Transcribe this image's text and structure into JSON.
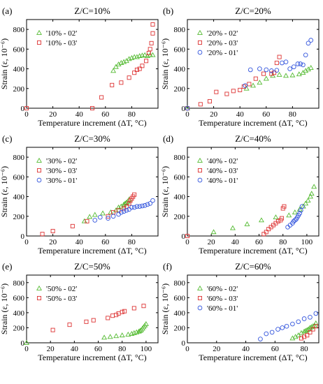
{
  "chart_data": [
    {
      "panel": "(a)",
      "type": "scatter",
      "title": "Z/C=10%",
      "xlabel": "Temperature increment (ΔT, °C)",
      "ylabel": "Strain (ε, 10⁻⁶)",
      "xlim": [
        0,
        100
      ],
      "ylim": [
        0,
        900
      ],
      "xticks": [
        "0",
        "20",
        "40",
        "60",
        "80"
      ],
      "yticks": [
        "0",
        "200",
        "400",
        "600",
        "800"
      ],
      "legend_position": "top-left",
      "series": [
        {
          "name": "'10% - 02'",
          "marker": "triangle",
          "color": "#55bb33",
          "x": [
            66,
            68,
            70,
            72,
            74,
            76,
            78,
            80,
            82,
            84,
            86,
            88,
            90,
            92,
            94,
            96
          ],
          "y": [
            380,
            420,
            445,
            460,
            470,
            480,
            500,
            510,
            520,
            520,
            530,
            535,
            540,
            530,
            540,
            540
          ]
        },
        {
          "name": "'10% - 03'",
          "marker": "square",
          "color": "#dd3333",
          "x": [
            0,
            50,
            57,
            65,
            72,
            78,
            82,
            84,
            86,
            88,
            91,
            93,
            94,
            95,
            96,
            96
          ],
          "y": [
            0,
            0,
            110,
            235,
            260,
            310,
            360,
            390,
            400,
            430,
            480,
            560,
            600,
            660,
            760,
            850
          ]
        }
      ]
    },
    {
      "panel": "(b)",
      "type": "scatter",
      "title": "Z/C=20%",
      "xlabel": "Temperature increment (ΔT, °C)",
      "ylabel": "Strain (ε, 10⁻⁶)",
      "xlim": [
        0,
        100
      ],
      "ylim": [
        0,
        900
      ],
      "xticks": [
        "0",
        "20",
        "40",
        "60",
        "80"
      ],
      "yticks": [
        "0",
        "200",
        "400",
        "600",
        "800"
      ],
      "legend_position": "top-left",
      "series": [
        {
          "name": "'20% - 02'",
          "marker": "triangle",
          "color": "#55bb33",
          "x": [
            0,
            45,
            50,
            55,
            60,
            65,
            70,
            75,
            80,
            85,
            88,
            90,
            92,
            94
          ],
          "y": [
            0,
            200,
            230,
            260,
            300,
            330,
            340,
            330,
            335,
            345,
            360,
            380,
            395,
            410
          ]
        },
        {
          "name": "'20% - 03'",
          "marker": "square",
          "color": "#dd3333",
          "x": [
            0,
            10,
            17,
            22,
            30,
            35,
            40,
            43,
            47,
            52,
            58,
            64,
            66,
            68,
            70
          ],
          "y": [
            0,
            40,
            70,
            165,
            145,
            175,
            185,
            220,
            245,
            300,
            350,
            350,
            360,
            460,
            520
          ]
        },
        {
          "name": "'20% - 01'",
          "marker": "circle",
          "color": "#3355dd",
          "x": [
            0,
            44,
            48,
            55,
            60,
            64,
            68,
            72,
            75,
            78,
            81,
            84,
            86,
            88,
            90,
            92,
            94
          ],
          "y": [
            0,
            230,
            390,
            400,
            390,
            380,
            385,
            460,
            470,
            400,
            420,
            450,
            450,
            440,
            540,
            660,
            690
          ]
        }
      ]
    },
    {
      "panel": "(c)",
      "type": "scatter",
      "title": "Z/C=30%",
      "xlabel": "Temperature increment (ΔT, °C)",
      "ylabel": "Strain (ε, 10⁻⁶)",
      "xlim": [
        0,
        100
      ],
      "ylim": [
        0,
        900
      ],
      "xticks": [
        "0",
        "20",
        "40",
        "60",
        "80"
      ],
      "yticks": [
        "0",
        "200",
        "400",
        "600",
        "800"
      ],
      "legend_position": "top-left",
      "series": [
        {
          "name": "'30% - 02'",
          "marker": "triangle",
          "color": "#55bb33",
          "x": [
            44,
            48,
            52,
            58,
            64,
            68,
            70,
            72,
            74,
            75,
            76,
            77,
            78
          ],
          "y": [
            150,
            195,
            215,
            230,
            240,
            260,
            290,
            300,
            320,
            330,
            340,
            350,
            370
          ]
        },
        {
          "name": "'30% - 03'",
          "marker": "square",
          "color": "#dd3333",
          "x": [
            12,
            20,
            35,
            46,
            62,
            66,
            70,
            74,
            76,
            78,
            79,
            80,
            81,
            82
          ],
          "y": [
            20,
            50,
            100,
            150,
            200,
            240,
            260,
            280,
            300,
            330,
            360,
            380,
            400,
            420
          ]
        },
        {
          "name": "'30% - 01'",
          "marker": "circle",
          "color": "#3355dd",
          "x": [
            52,
            56,
            62,
            66,
            70,
            72,
            74,
            76,
            78,
            80,
            82,
            84,
            86,
            88,
            90,
            92,
            94,
            96
          ],
          "y": [
            160,
            190,
            180,
            200,
            220,
            240,
            250,
            260,
            270,
            290,
            290,
            300,
            300,
            305,
            310,
            320,
            330,
            360
          ]
        }
      ]
    },
    {
      "panel": "(d)",
      "type": "scatter",
      "title": "Z/C=40%",
      "xlabel": "Temperature increment (ΔT, °C)",
      "ylabel": "Strain (ε, 10⁻⁶)",
      "xlim": [
        0,
        110
      ],
      "ylim": [
        0,
        900
      ],
      "xticks": [
        "0",
        "20",
        "40",
        "60",
        "80",
        "100"
      ],
      "yticks": [
        "0",
        "200",
        "400",
        "600",
        "800"
      ],
      "legend_position": "top-left",
      "series": [
        {
          "name": "'40% - 02'",
          "marker": "triangle",
          "color": "#55bb33",
          "x": [
            22,
            38,
            50,
            62,
            74,
            85,
            90,
            94,
            97,
            99,
            101,
            103,
            104,
            106
          ],
          "y": [
            40,
            80,
            120,
            160,
            190,
            210,
            240,
            270,
            300,
            330,
            360,
            400,
            430,
            500
          ]
        },
        {
          "name": "'40% - 03'",
          "marker": "square",
          "color": "#dd3333",
          "x": [
            0,
            64,
            66,
            68,
            70,
            72,
            74,
            76,
            78,
            79,
            80,
            81
          ],
          "y": [
            0,
            20,
            40,
            70,
            90,
            110,
            130,
            150,
            160,
            180,
            280,
            300
          ]
        },
        {
          "name": "'40% - 01'",
          "marker": "circle",
          "color": "#3355dd",
          "x": [
            84,
            86,
            88,
            89,
            90,
            91,
            92,
            93,
            94,
            95,
            96
          ],
          "y": [
            90,
            110,
            130,
            150,
            160,
            170,
            190,
            210,
            230,
            260,
            300
          ]
        }
      ]
    },
    {
      "panel": "(e)",
      "type": "scatter",
      "title": "Z/C=50%",
      "xlabel": "Temperature increment (ΔT, °C)",
      "ylabel": "Strain (ε, 10⁻⁶)",
      "xlim": [
        0,
        110
      ],
      "ylim": [
        0,
        900
      ],
      "xticks": [
        "0",
        "20",
        "40",
        "60",
        "80",
        "100"
      ],
      "yticks": [
        "0",
        "200",
        "400",
        "600",
        "800"
      ],
      "legend_position": "top-left",
      "series": [
        {
          "name": "'50% - 02'",
          "marker": "triangle",
          "color": "#55bb33",
          "x": [
            0,
            65,
            70,
            75,
            80,
            85,
            88,
            90,
            92,
            94,
            95,
            96,
            97,
            98,
            99,
            100
          ],
          "y": [
            0,
            70,
            80,
            90,
            100,
            110,
            120,
            130,
            140,
            150,
            160,
            170,
            190,
            210,
            230,
            250
          ]
        },
        {
          "name": "'50% - 03'",
          "marker": "square",
          "color": "#dd3333",
          "x": [
            22,
            36,
            50,
            56,
            68,
            72,
            75,
            77,
            80,
            82,
            90,
            98
          ],
          "y": [
            170,
            240,
            280,
            300,
            330,
            360,
            370,
            390,
            410,
            420,
            460,
            490
          ]
        }
      ]
    },
    {
      "panel": "(f)",
      "type": "scatter",
      "title": "Z/C=60%",
      "xlabel": "Temperature increment (ΔT, °C)",
      "ylabel": "Strain (ε, 10⁻⁶)",
      "xlim": [
        0,
        90
      ],
      "ylim": [
        0,
        900
      ],
      "xticks": [
        "0",
        "20",
        "40",
        "60",
        "80"
      ],
      "yticks": [
        "0",
        "200",
        "400",
        "600",
        "800"
      ],
      "legend_position": "top-left",
      "series": [
        {
          "name": "'60% - 02'",
          "marker": "triangle",
          "color": "#55bb33",
          "x": [
            72,
            74,
            76,
            78,
            80,
            81,
            82,
            83,
            84,
            85,
            86,
            87,
            88
          ],
          "y": [
            60,
            80,
            100,
            130,
            150,
            160,
            170,
            180,
            200,
            210,
            220,
            230,
            260
          ]
        },
        {
          "name": "'60% - 03'",
          "marker": "square",
          "color": "#dd3333",
          "x": [
            78,
            80,
            82,
            84,
            86,
            88
          ],
          "y": [
            60,
            80,
            100,
            140,
            180,
            220
          ]
        },
        {
          "name": "'60% - 01'",
          "marker": "circle",
          "color": "#3355dd",
          "x": [
            50,
            54,
            58,
            62,
            65,
            68,
            72,
            76,
            80,
            84,
            88
          ],
          "y": [
            50,
            120,
            140,
            180,
            200,
            220,
            250,
            280,
            320,
            340,
            390
          ]
        }
      ]
    }
  ]
}
